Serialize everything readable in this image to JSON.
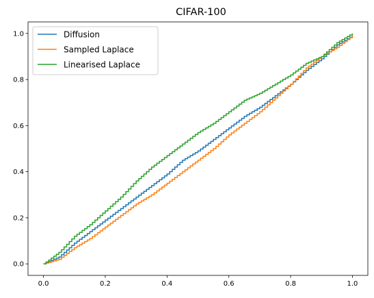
{
  "chart_data": {
    "type": "line",
    "title": "CIFAR-100",
    "xlabel": "",
    "ylabel": "",
    "xlim": [
      -0.05,
      1.05
    ],
    "ylim": [
      -0.05,
      1.05
    ],
    "xticks": [
      0.0,
      0.2,
      0.4,
      0.6,
      0.8,
      1.0
    ],
    "yticks": [
      0.0,
      0.2,
      0.4,
      0.6,
      0.8,
      1.0
    ],
    "xtick_labels": [
      "0.0",
      "0.2",
      "0.4",
      "0.6",
      "0.8",
      "1.0"
    ],
    "ytick_labels": [
      "0.0",
      "0.2",
      "0.4",
      "0.6",
      "0.8",
      "1.0"
    ],
    "grid": false,
    "legend_position": "top-left",
    "series": [
      {
        "name": "Diffusion",
        "color": "#1f77b4",
        "step": true,
        "points": [
          [
            0.0,
            0.0
          ],
          [
            0.05,
            0.03
          ],
          [
            0.1,
            0.09
          ],
          [
            0.15,
            0.14
          ],
          [
            0.2,
            0.19
          ],
          [
            0.25,
            0.24
          ],
          [
            0.3,
            0.29
          ],
          [
            0.35,
            0.34
          ],
          [
            0.4,
            0.39
          ],
          [
            0.45,
            0.45
          ],
          [
            0.5,
            0.49
          ],
          [
            0.55,
            0.54
          ],
          [
            0.6,
            0.59
          ],
          [
            0.65,
            0.64
          ],
          [
            0.7,
            0.68
          ],
          [
            0.75,
            0.73
          ],
          [
            0.8,
            0.78
          ],
          [
            0.85,
            0.84
          ],
          [
            0.9,
            0.89
          ],
          [
            0.95,
            0.95
          ],
          [
            1.0,
            0.99
          ]
        ]
      },
      {
        "name": "Sampled Laplace",
        "color": "#ff7f0e",
        "step": true,
        "points": [
          [
            0.0,
            0.0
          ],
          [
            0.05,
            0.02
          ],
          [
            0.1,
            0.07
          ],
          [
            0.15,
            0.11
          ],
          [
            0.2,
            0.16
          ],
          [
            0.25,
            0.21
          ],
          [
            0.3,
            0.26
          ],
          [
            0.35,
            0.3
          ],
          [
            0.4,
            0.35
          ],
          [
            0.45,
            0.4
          ],
          [
            0.5,
            0.45
          ],
          [
            0.55,
            0.5
          ],
          [
            0.6,
            0.56
          ],
          [
            0.65,
            0.61
          ],
          [
            0.7,
            0.66
          ],
          [
            0.75,
            0.72
          ],
          [
            0.8,
            0.78
          ],
          [
            0.85,
            0.85
          ],
          [
            0.9,
            0.9
          ],
          [
            0.95,
            0.94
          ],
          [
            1.0,
            0.99
          ]
        ]
      },
      {
        "name": "Linearised Laplace",
        "color": "#2ca02c",
        "step": true,
        "points": [
          [
            0.0,
            0.0
          ],
          [
            0.05,
            0.05
          ],
          [
            0.1,
            0.12
          ],
          [
            0.15,
            0.17
          ],
          [
            0.2,
            0.23
          ],
          [
            0.25,
            0.29
          ],
          [
            0.3,
            0.36
          ],
          [
            0.35,
            0.42
          ],
          [
            0.4,
            0.47
          ],
          [
            0.45,
            0.52
          ],
          [
            0.5,
            0.57
          ],
          [
            0.55,
            0.61
          ],
          [
            0.6,
            0.66
          ],
          [
            0.65,
            0.71
          ],
          [
            0.7,
            0.74
          ],
          [
            0.75,
            0.78
          ],
          [
            0.8,
            0.82
          ],
          [
            0.85,
            0.87
          ],
          [
            0.9,
            0.9
          ],
          [
            0.95,
            0.96
          ],
          [
            1.0,
            1.0
          ]
        ]
      }
    ]
  }
}
